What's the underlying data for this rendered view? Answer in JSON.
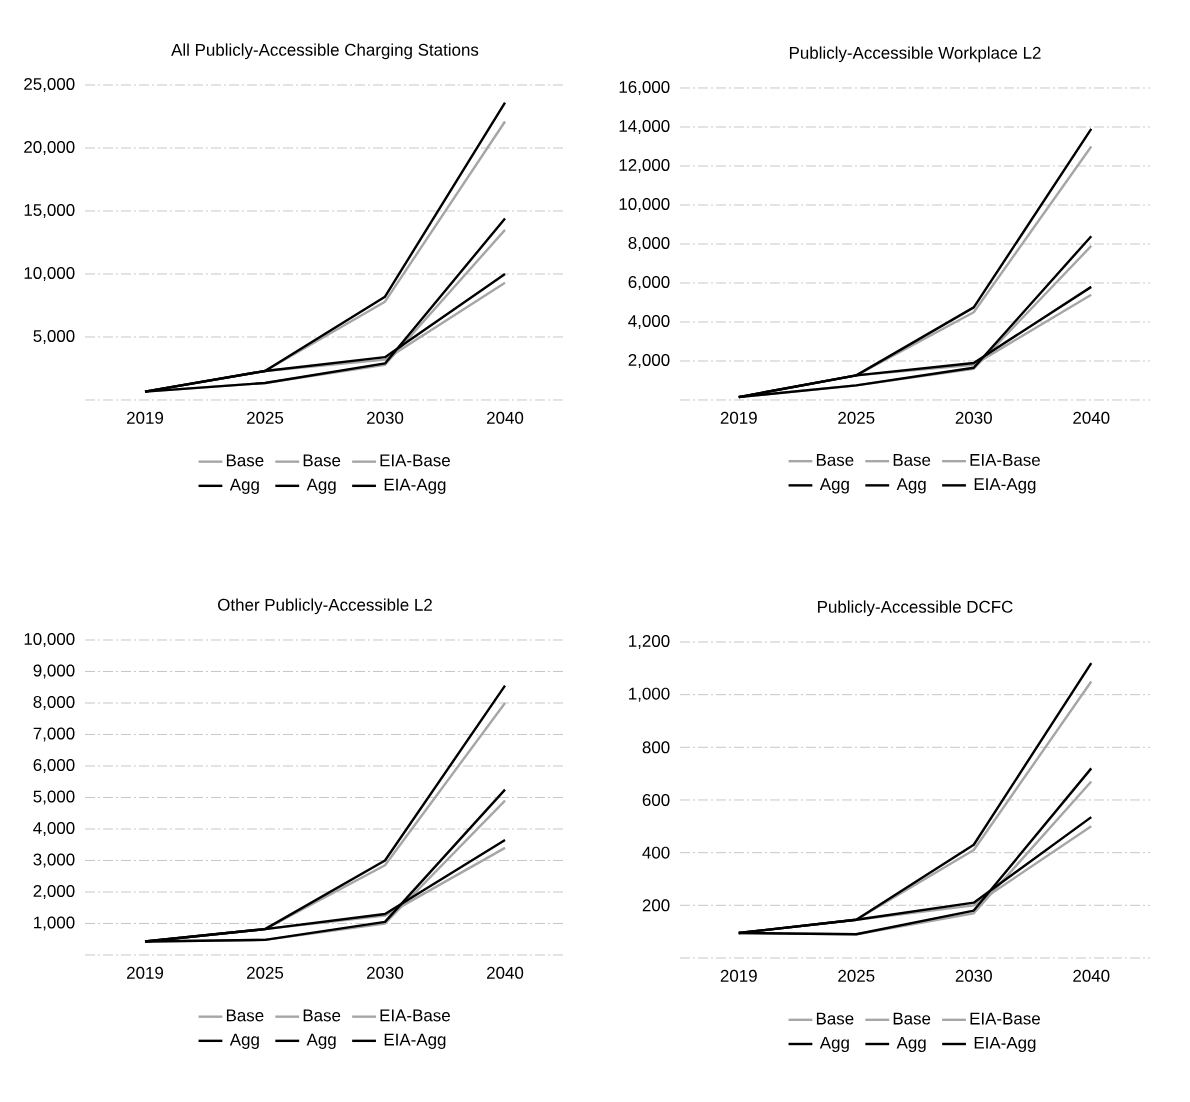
{
  "chart_data": [
    {
      "type": "line",
      "title": "All Publicly-Accessible Charging Stations",
      "categories": [
        "2019",
        "2025",
        "2030",
        "2040"
      ],
      "ylim": [
        0,
        25000
      ],
      "yticks": [
        {
          "value": 0,
          "label": null
        },
        {
          "value": 5000,
          "label": "5,000"
        },
        {
          "value": 10000,
          "label": "10,000"
        },
        {
          "value": 15000,
          "label": "15,000"
        },
        {
          "value": 20000,
          "label": "20,000"
        },
        {
          "value": 25000,
          "label": "25,000"
        }
      ],
      "grid": "y",
      "legend": "bottom",
      "series": [
        {
          "name": "Base",
          "color": "#a6a6a6",
          "values": [
            660,
            2300,
            7800,
            22100
          ]
        },
        {
          "name": "Base",
          "color": "#a6a6a6",
          "values": [
            660,
            1350,
            2800,
            13500
          ]
        },
        {
          "name": "EIA-Base",
          "color": "#a6a6a6",
          "values": [
            660,
            2300,
            3200,
            9300
          ]
        },
        {
          "name": "Agg",
          "color": "#000000",
          "values": [
            660,
            2300,
            8200,
            23600
          ]
        },
        {
          "name": "Agg",
          "color": "#000000",
          "values": [
            660,
            1350,
            2900,
            14400
          ]
        },
        {
          "name": "EIA-Agg",
          "color": "#000000",
          "values": [
            660,
            2300,
            3400,
            10000
          ]
        }
      ]
    },
    {
      "type": "line",
      "title": "Publicly-Accessible Workplace L2",
      "categories": [
        "2019",
        "2025",
        "2030",
        "2040"
      ],
      "ylim": [
        0,
        16000
      ],
      "yticks": [
        {
          "value": 0,
          "label": null
        },
        {
          "value": 2000,
          "label": "2,000"
        },
        {
          "value": 4000,
          "label": "4,000"
        },
        {
          "value": 6000,
          "label": "6,000"
        },
        {
          "value": 8000,
          "label": "8,000"
        },
        {
          "value": 10000,
          "label": "10,000"
        },
        {
          "value": 12000,
          "label": "12,000"
        },
        {
          "value": 14000,
          "label": "14,000"
        },
        {
          "value": 16000,
          "label": "16,000"
        }
      ],
      "grid": "y",
      "legend": "bottom",
      "series": [
        {
          "name": "Base",
          "color": "#a6a6a6",
          "values": [
            150,
            1260,
            4500,
            13000
          ]
        },
        {
          "name": "Base",
          "color": "#a6a6a6",
          "values": [
            150,
            750,
            1600,
            7900
          ]
        },
        {
          "name": "EIA-Base",
          "color": "#a6a6a6",
          "values": [
            150,
            1260,
            1800,
            5400
          ]
        },
        {
          "name": "Agg",
          "color": "#000000",
          "values": [
            150,
            1260,
            4750,
            13900
          ]
        },
        {
          "name": "Agg",
          "color": "#000000",
          "values": [
            150,
            750,
            1650,
            8400
          ]
        },
        {
          "name": "EIA-Agg",
          "color": "#000000",
          "values": [
            150,
            1260,
            1900,
            5800
          ]
        }
      ]
    },
    {
      "type": "line",
      "title": "Other Publicly-Accessible L2",
      "categories": [
        "2019",
        "2025",
        "2030",
        "2040"
      ],
      "ylim": [
        0,
        10000
      ],
      "yticks": [
        {
          "value": 0,
          "label": null
        },
        {
          "value": 1000,
          "label": "1,000"
        },
        {
          "value": 2000,
          "label": "2,000"
        },
        {
          "value": 3000,
          "label": "3,000"
        },
        {
          "value": 4000,
          "label": "4,000"
        },
        {
          "value": 5000,
          "label": "5,000"
        },
        {
          "value": 6000,
          "label": "6,000"
        },
        {
          "value": 7000,
          "label": "7,000"
        },
        {
          "value": 8000,
          "label": "8,000"
        },
        {
          "value": 9000,
          "label": "9,000"
        },
        {
          "value": 10000,
          "label": "10,000"
        }
      ],
      "grid": "y",
      "legend": "bottom",
      "series": [
        {
          "name": "Base",
          "color": "#a6a6a6",
          "values": [
            430,
            820,
            2850,
            8000
          ]
        },
        {
          "name": "Base",
          "color": "#a6a6a6",
          "values": [
            430,
            480,
            1000,
            4900
          ]
        },
        {
          "name": "EIA-Base",
          "color": "#a6a6a6",
          "values": [
            430,
            820,
            1250,
            3400
          ]
        },
        {
          "name": "Agg",
          "color": "#000000",
          "values": [
            430,
            820,
            3000,
            8550
          ]
        },
        {
          "name": "Agg",
          "color": "#000000",
          "values": [
            430,
            480,
            1050,
            5250
          ]
        },
        {
          "name": "EIA-Agg",
          "color": "#000000",
          "values": [
            430,
            820,
            1300,
            3650
          ]
        }
      ]
    },
    {
      "type": "line",
      "title": "Publicly-Accessible DCFC",
      "categories": [
        "2019",
        "2025",
        "2030",
        "2040"
      ],
      "ylim": [
        0,
        1200
      ],
      "yticks": [
        {
          "value": 0,
          "label": null
        },
        200,
        400,
        600,
        800,
        {
          "value": 1000,
          "label": "1,000"
        },
        {
          "value": 1200,
          "label": "1,200"
        }
      ],
      "grid": "y",
      "legend": "bottom",
      "series": [
        {
          "name": "Base",
          "color": "#a6a6a6",
          "values": [
            95,
            145,
            410,
            1050
          ]
        },
        {
          "name": "Base",
          "color": "#a6a6a6",
          "values": [
            95,
            90,
            170,
            670
          ]
        },
        {
          "name": "EIA-Base",
          "color": "#a6a6a6",
          "values": [
            95,
            145,
            200,
            500
          ]
        },
        {
          "name": "Agg",
          "color": "#000000",
          "values": [
            95,
            145,
            430,
            1120
          ]
        },
        {
          "name": "Agg",
          "color": "#000000",
          "values": [
            95,
            90,
            180,
            720
          ]
        },
        {
          "name": "EIA-Agg",
          "color": "#000000",
          "values": [
            95,
            145,
            210,
            535
          ]
        }
      ]
    }
  ]
}
